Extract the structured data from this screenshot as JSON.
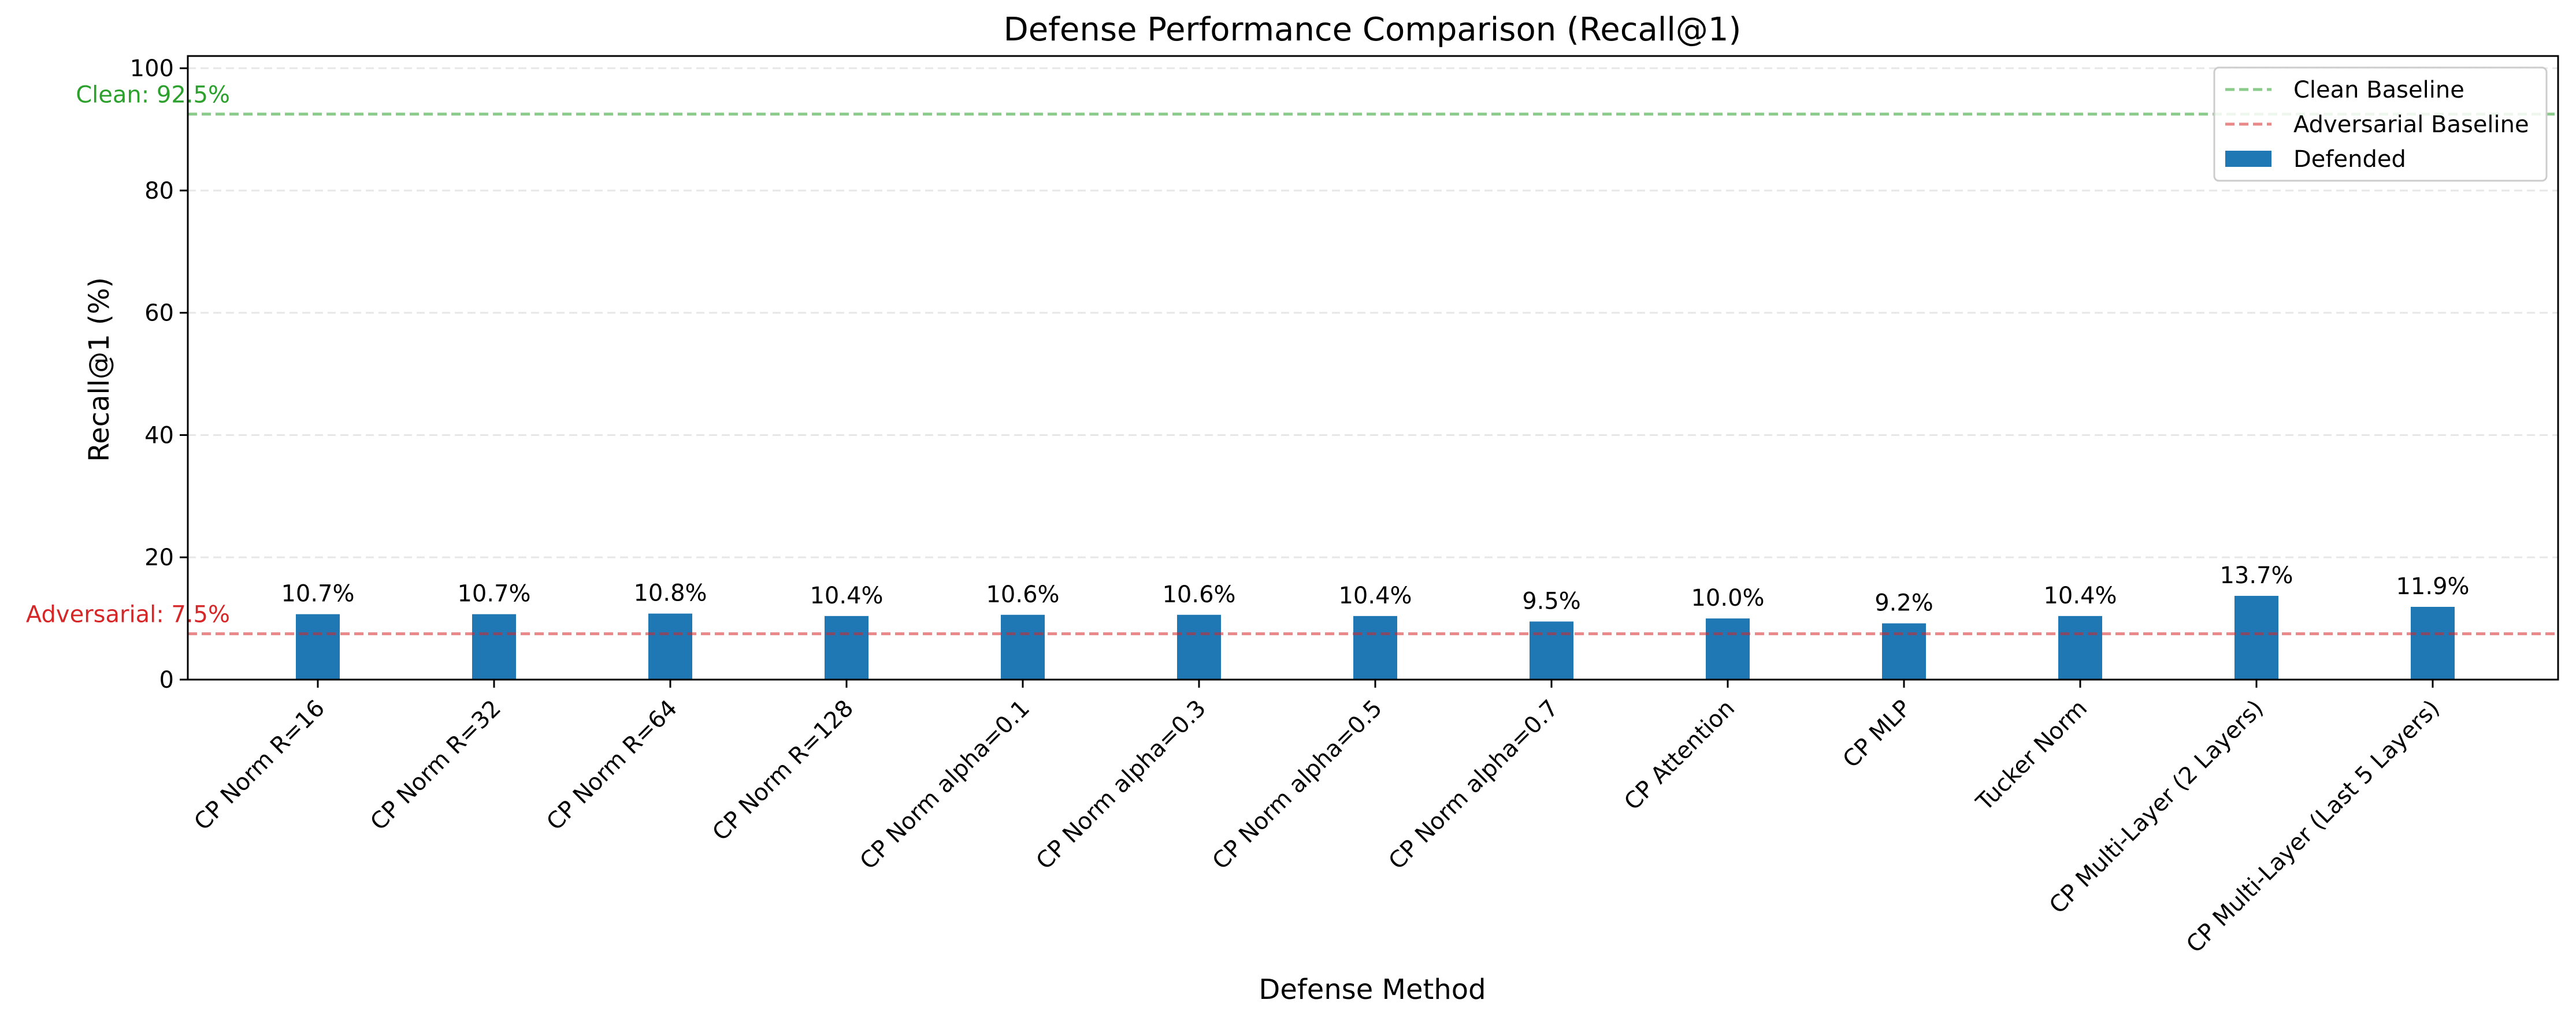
{
  "chart_data": {
    "type": "bar",
    "title": "Defense Performance Comparison (Recall@1)",
    "xlabel": "Defense Method",
    "ylabel": "Recall@1 (%)",
    "ylim": [
      0,
      102
    ],
    "yticks": [
      0,
      20,
      40,
      60,
      80,
      100
    ],
    "grid": "y, dashed",
    "legend_position": "top-right",
    "categories": [
      "CP Norm R=16",
      "CP Norm R=32",
      "CP Norm R=64",
      "CP Norm R=128",
      "CP Norm alpha=0.1",
      "CP Norm alpha=0.3",
      "CP Norm alpha=0.5",
      "CP Norm alpha=0.7",
      "CP Attention",
      "CP MLP",
      "Tucker Norm",
      "CP Multi-Layer (2 Layers)",
      "CP Multi-Layer (Last 5 Layers)"
    ],
    "series": [
      {
        "name": "Defended",
        "color": "#1f77b4",
        "values": [
          10.7,
          10.7,
          10.8,
          10.4,
          10.6,
          10.6,
          10.4,
          9.5,
          10.0,
          9.2,
          10.4,
          13.7,
          11.9
        ],
        "labels": [
          "10.7%",
          "10.7%",
          "10.8%",
          "10.4%",
          "10.6%",
          "10.6%",
          "10.4%",
          "9.5%",
          "10.0%",
          "9.2%",
          "10.4%",
          "13.7%",
          "11.9%"
        ]
      }
    ],
    "reference_lines": [
      {
        "name": "Clean Baseline",
        "value": 92.5,
        "color": "#2ca02c",
        "annotation": "Clean: 92.5%"
      },
      {
        "name": "Adversarial Baseline",
        "value": 7.5,
        "color": "#d62728",
        "annotation": "Adversarial: 7.5%"
      }
    ]
  }
}
